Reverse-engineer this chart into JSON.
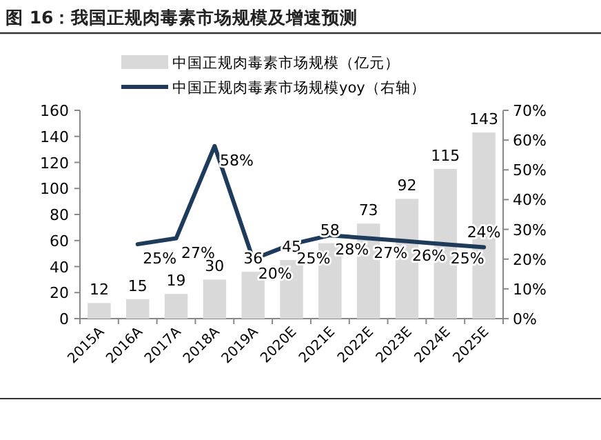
{
  "chart_data": {
    "type": "bar",
    "title": "图 16：我国正规肉毒素市场规模及增速预测",
    "categories": [
      "2015A",
      "2016A",
      "2017A",
      "2018A",
      "2019A",
      "2020E",
      "2021E",
      "2022E",
      "2023E",
      "2024E",
      "2025E"
    ],
    "series": [
      {
        "name": "中国正规肉毒素市场规模（亿元）",
        "color": "#d9d9d9",
        "values": [
          12,
          15,
          19,
          30,
          36,
          45,
          58,
          73,
          92,
          115,
          143
        ],
        "value_labels": [
          "12",
          "15",
          "19",
          "30",
          "36",
          "45",
          "58",
          "73",
          "92",
          "115",
          "143"
        ]
      },
      {
        "name": "中国正规肉毒素市场规模yoy（右轴）",
        "type": "line",
        "axis": "y2",
        "color": "#1f3b5c",
        "values": [
          null,
          25,
          27,
          58,
          20,
          25,
          28,
          27,
          26,
          25,
          24
        ],
        "value_labels": [
          null,
          "25%",
          "27%",
          "58%",
          "20%",
          "25%",
          "28%",
          "27%",
          "26%",
          "25%",
          "24%"
        ]
      }
    ],
    "ylim": [
      0,
      160
    ],
    "yticks": [
      0,
      20,
      40,
      60,
      80,
      100,
      120,
      140,
      160
    ],
    "y2lim": [
      0,
      70
    ],
    "y2ticks": [
      {
        "value": 0,
        "label": "0%"
      },
      {
        "value": 10,
        "label": "10%"
      },
      {
        "value": 20,
        "label": "20%"
      },
      {
        "value": 30,
        "label": "30%"
      },
      {
        "value": 40,
        "label": "40%"
      },
      {
        "value": 50,
        "label": "50%"
      },
      {
        "value": 60,
        "label": "60%"
      },
      {
        "value": 70,
        "label": "70%"
      }
    ],
    "legend": "top",
    "grid": false
  }
}
